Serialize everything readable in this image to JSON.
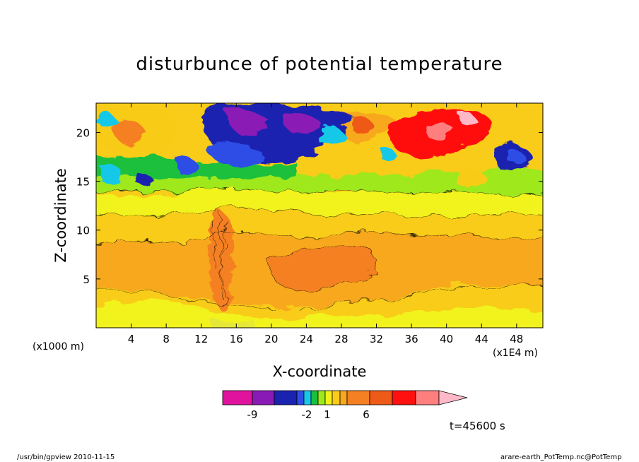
{
  "chart_data": {
    "type": "heatmap",
    "title": "disturbunce of potential temperature",
    "xlabel": "X-coordinate",
    "ylabel": "Z-coordinate",
    "x_ticks": [
      "4",
      "8",
      "12",
      "16",
      "20",
      "24",
      "28",
      "32",
      "36",
      "40",
      "44",
      "48"
    ],
    "y_ticks": [
      "5",
      "10",
      "15",
      "20"
    ],
    "xlim": [
      0,
      51
    ],
    "ylim": [
      0,
      23
    ],
    "x_unit_left": "(x1000 m)",
    "x_unit_right": "(x1E4 m)",
    "colorbar": {
      "labels": [
        "-9",
        "-2",
        "1",
        "6"
      ],
      "colors": [
        "#e0139e",
        "#8a1ab5",
        "#1a22b0",
        "#2d4ee6",
        "#19c8e8",
        "#1ac03e",
        "#9ee81e",
        "#f2f21a",
        "#f8cc18",
        "#f7a81e",
        "#f58024",
        "#ee5a18",
        "#ff1010",
        "#ff7f7f",
        "#ffb8c8"
      ]
    },
    "time_label": "t=45600 s",
    "grid": false
  },
  "footer": {
    "left": "/usr/bin/gpview   2010-11-15",
    "right": "arare-earth_PotTemp.nc@PotTemp"
  }
}
